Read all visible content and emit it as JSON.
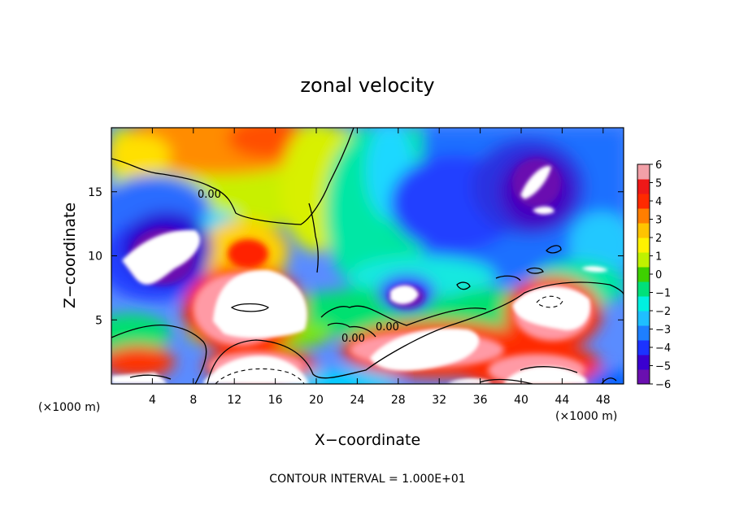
{
  "chart_data": {
    "type": "heatmap",
    "title": "zonal velocity",
    "xlabel": "X−coordinate",
    "ylabel": "Z−coordinate",
    "x_unit_left": "(×1000 m)",
    "x_unit_right": "(×1000 m)",
    "xlim": [
      0,
      50
    ],
    "ylim": [
      0,
      20
    ],
    "x_ticks": [
      4,
      8,
      12,
      16,
      20,
      24,
      28,
      32,
      36,
      40,
      44,
      48
    ],
    "x_tick_labels": [
      "4",
      "8",
      "12",
      "16",
      "20",
      "24",
      "28",
      "32",
      "36",
      "40",
      "44",
      "48"
    ],
    "y_ticks": [
      5,
      10,
      15
    ],
    "y_tick_labels": [
      "5",
      "10",
      "15"
    ],
    "colorbar": {
      "min": -6,
      "max": 6,
      "ticks": [
        6,
        5,
        4,
        3,
        2,
        1,
        0,
        -1,
        -2,
        -3,
        -4,
        -5,
        -6
      ],
      "tick_labels": [
        "6",
        "5",
        "4",
        "3",
        "2",
        "1",
        "0",
        "−1",
        "−2",
        "−3",
        "−4",
        "−5",
        "−6"
      ],
      "colors": [
        "#6a0fb0",
        "#3a00d0",
        "#1c33ff",
        "#1e7fff",
        "#1fbfff",
        "#00f0e0",
        "#00e07a",
        "#3ed000",
        "#bff200",
        "#fff200",
        "#ffc400",
        "#ff7e00",
        "#ff2a00",
        "#ee1818",
        "#f2a0a8"
      ]
    },
    "contour_labels": [
      "0.00",
      "0.00",
      "0.00"
    ],
    "contour_interval_label": "CONTOUR INTERVAL = 1.000E+01"
  }
}
